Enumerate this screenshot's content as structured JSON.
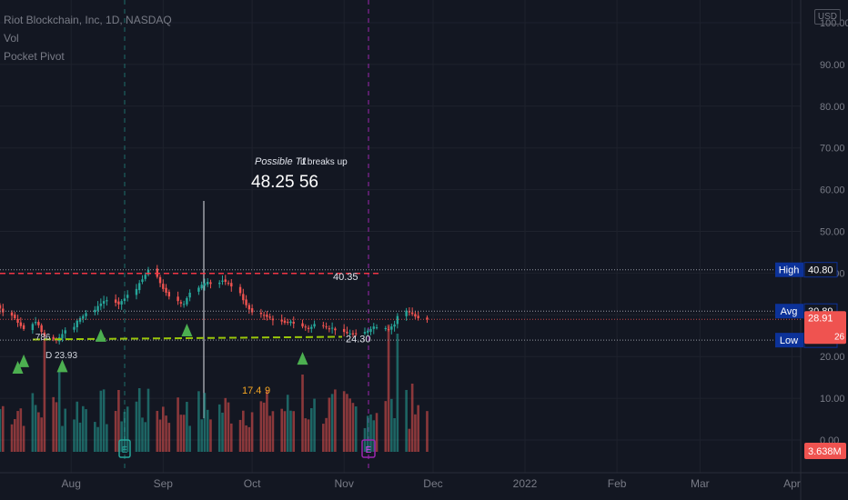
{
  "legend": {
    "symbol": "Riot Blockchain, Inc, 1D, NASDAQ",
    "vol": "Vol",
    "pocket": "Pocket Pivot"
  },
  "currency": "USD",
  "chart_data": {
    "type": "candlestick",
    "ylim": [
      0,
      105
    ],
    "y_ticks": [
      "0.00",
      "10.00",
      "20.00",
      "30.00",
      "40.00",
      "50.00",
      "60.00",
      "70.00",
      "80.00",
      "90.00",
      "100.00"
    ],
    "x_ticks": [
      {
        "label": "Aug",
        "date": "2021-08-01"
      },
      {
        "label": "Sep",
        "date": "2021-09-01"
      },
      {
        "label": "Oct",
        "date": "2021-10-01"
      },
      {
        "label": "Nov",
        "date": "2021-11-01"
      },
      {
        "label": "Dec",
        "date": "2021-12-01"
      },
      {
        "label": "2022",
        "date": "2022-01-01"
      },
      {
        "label": "Feb",
        "date": "2022-02-01"
      },
      {
        "label": "Mar",
        "date": "2022-03-01"
      },
      {
        "label": "Apr",
        "date": "2022-04-01"
      }
    ],
    "candles_close": [
      31.5,
      30.6,
      29.8,
      29.2,
      28.1,
      27.3,
      26.6,
      27.8,
      28.3,
      27.5,
      25.9,
      24.9,
      24.1,
      23.9,
      24.6,
      25.4,
      26.3,
      27.1,
      28.6,
      29.2,
      29.7,
      30.4,
      31.2,
      32.1,
      32.7,
      33.3,
      33.5,
      32.9,
      32.5,
      33.3,
      33.9,
      34.8,
      36.2,
      37.6,
      38.5,
      39.6,
      40.8,
      39.1,
      37.6,
      36.2,
      35.3,
      34.4,
      33.3,
      32.7,
      32.6,
      34.0,
      35.3,
      36.5,
      37.2,
      37.6,
      37.9,
      37.4,
      37.7,
      38.2,
      37.9,
      37.5,
      36.8,
      35.2,
      33.5,
      32.3,
      31.3,
      30.6,
      30.2,
      29.9,
      29.5,
      29.3,
      28.7,
      28.4,
      28.1,
      28.2,
      28.4,
      27.9,
      27.2,
      27.0,
      26.6,
      27.1,
      27.8,
      27.5,
      27.0,
      26.6,
      26.9,
      26.3,
      25.9,
      25.6,
      25.5,
      25.3,
      25.4,
      25.9,
      26.2,
      26.6,
      27.2,
      27.0,
      26.8,
      26.5,
      27.2,
      27.7,
      29.7,
      31.0,
      30.6,
      30.2,
      29.6,
      29.2,
      28.9
    ],
    "ref_levels": {
      "high": 40.8,
      "avg": 30.89,
      "low": 23.93
    },
    "price_tag": {
      "value": "28.91",
      "sub": "26"
    },
    "volume_label": "3.638M",
    "drawn_lines": [
      {
        "label": "40.35",
        "value": 40.35,
        "color": "#f23645"
      },
      {
        "label": "24.30",
        "value": 24.3,
        "color": "#9ac60a"
      }
    ],
    "annotations": {
      "target_caption_a": "Possible T1",
      "target_caption_b": "if breaks up",
      "target_values": "48.25    56",
      "fib_label": ".786",
      "low_label": "D  23.93",
      "vol_note_a": "17.4",
      "vol_note_b": "9",
      "earnings": "E"
    },
    "pivot_markers": [
      4,
      6,
      15,
      24,
      45,
      72
    ]
  }
}
